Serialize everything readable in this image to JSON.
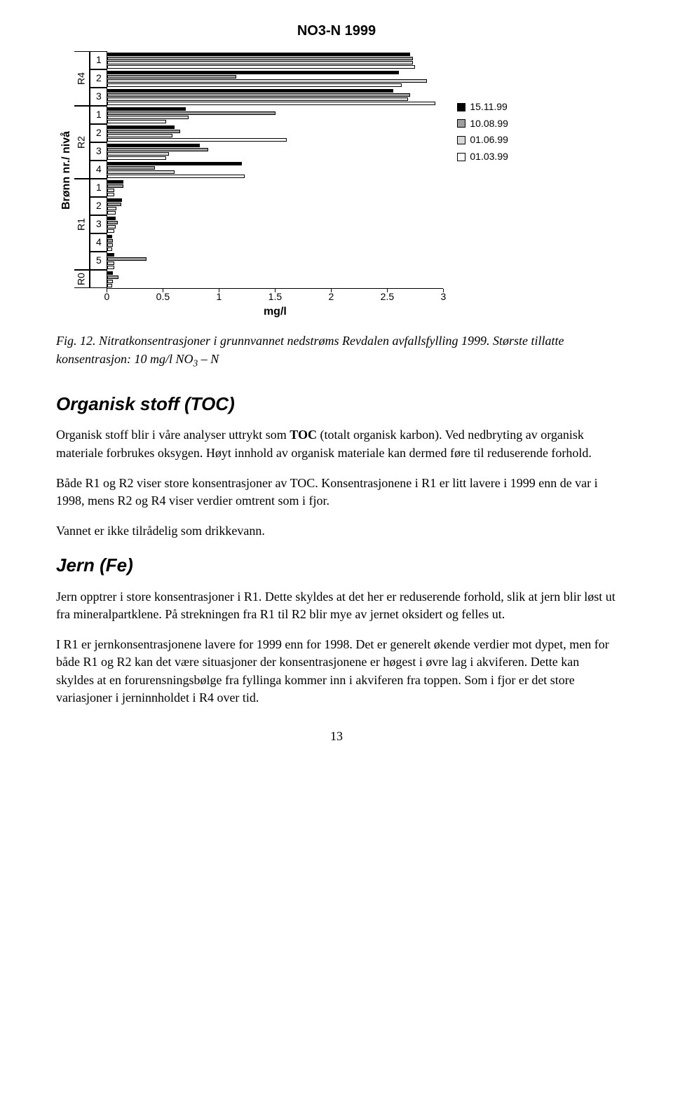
{
  "chart": {
    "title": "NO3-N 1999",
    "y_axis_title": "Brønn nr./ nivå",
    "x_axis_title": "mg/l",
    "x_ticks": [
      "0",
      "0.5",
      "1",
      "1.5",
      "2",
      "2.5",
      "3"
    ],
    "x_max": 3,
    "legend": [
      {
        "label": "15.11.99",
        "color": "#000000"
      },
      {
        "label": "10.08.99",
        "color": "#9e9e9e"
      },
      {
        "label": "01.06.99",
        "color": "#d8d8d8"
      },
      {
        "label": "01.03.99",
        "color": "#ffffff"
      }
    ],
    "groups": [
      {
        "name": "R4",
        "cats": [
          {
            "label": "1",
            "bars": [
              {
                "c": "#000000",
                "v": 2.7
              },
              {
                "c": "#9e9e9e",
                "v": 2.72
              },
              {
                "c": "#d8d8d8",
                "v": 2.72
              },
              {
                "c": "#ffffff",
                "v": 2.74
              }
            ]
          },
          {
            "label": "2",
            "bars": [
              {
                "c": "#000000",
                "v": 2.6
              },
              {
                "c": "#9e9e9e",
                "v": 1.15
              },
              {
                "c": "#d8d8d8",
                "v": 2.85
              },
              {
                "c": "#ffffff",
                "v": 2.62
              }
            ]
          },
          {
            "label": "3",
            "bars": [
              {
                "c": "#000000",
                "v": 2.55
              },
              {
                "c": "#9e9e9e",
                "v": 2.7
              },
              {
                "c": "#d8d8d8",
                "v": 2.68
              },
              {
                "c": "#ffffff",
                "v": 2.92
              }
            ]
          }
        ]
      },
      {
        "name": "R2",
        "cats": [
          {
            "label": "1",
            "bars": [
              {
                "c": "#000000",
                "v": 0.7
              },
              {
                "c": "#9e9e9e",
                "v": 1.5
              },
              {
                "c": "#d8d8d8",
                "v": 0.72
              },
              {
                "c": "#ffffff",
                "v": 0.52
              }
            ]
          },
          {
            "label": "2",
            "bars": [
              {
                "c": "#000000",
                "v": 0.6
              },
              {
                "c": "#9e9e9e",
                "v": 0.65
              },
              {
                "c": "#d8d8d8",
                "v": 0.58
              },
              {
                "c": "#ffffff",
                "v": 1.6
              }
            ]
          },
          {
            "label": "3",
            "bars": [
              {
                "c": "#000000",
                "v": 0.82
              },
              {
                "c": "#9e9e9e",
                "v": 0.9
              },
              {
                "c": "#d8d8d8",
                "v": 0.55
              },
              {
                "c": "#ffffff",
                "v": 0.52
              }
            ]
          },
          {
            "label": "4",
            "bars": [
              {
                "c": "#000000",
                "v": 1.2
              },
              {
                "c": "#9e9e9e",
                "v": 0.42
              },
              {
                "c": "#d8d8d8",
                "v": 0.6
              },
              {
                "c": "#ffffff",
                "v": 1.22
              }
            ]
          }
        ]
      },
      {
        "name": "R1",
        "cats": [
          {
            "label": "1",
            "bars": [
              {
                "c": "#000000",
                "v": 0.14
              },
              {
                "c": "#9e9e9e",
                "v": 0.14
              },
              {
                "c": "#d8d8d8",
                "v": 0.06
              },
              {
                "c": "#ffffff",
                "v": 0.06
              }
            ]
          },
          {
            "label": "2",
            "bars": [
              {
                "c": "#000000",
                "v": 0.13
              },
              {
                "c": "#9e9e9e",
                "v": 0.12
              },
              {
                "c": "#d8d8d8",
                "v": 0.08
              },
              {
                "c": "#ffffff",
                "v": 0.07
              }
            ]
          },
          {
            "label": "3",
            "bars": [
              {
                "c": "#000000",
                "v": 0.07
              },
              {
                "c": "#9e9e9e",
                "v": 0.09
              },
              {
                "c": "#d8d8d8",
                "v": 0.07
              },
              {
                "c": "#ffffff",
                "v": 0.06
              }
            ]
          },
          {
            "label": "4",
            "bars": [
              {
                "c": "#000000",
                "v": 0.04
              },
              {
                "c": "#9e9e9e",
                "v": 0.05
              },
              {
                "c": "#d8d8d8",
                "v": 0.05
              },
              {
                "c": "#ffffff",
                "v": 0.04
              }
            ]
          },
          {
            "label": "5",
            "bars": [
              {
                "c": "#000000",
                "v": 0.06
              },
              {
                "c": "#9e9e9e",
                "v": 0.35
              },
              {
                "c": "#d8d8d8",
                "v": 0.06
              },
              {
                "c": "#ffffff",
                "v": 0.06
              }
            ]
          }
        ]
      },
      {
        "name": "R0",
        "cats": [
          {
            "label": "",
            "bars": [
              {
                "c": "#000000",
                "v": 0.05
              },
              {
                "c": "#9e9e9e",
                "v": 0.1
              },
              {
                "c": "#d8d8d8",
                "v": 0.05
              },
              {
                "c": "#ffffff",
                "v": 0.04
              }
            ]
          }
        ]
      }
    ]
  },
  "caption_prefix": "Fig. 12. Nitratkonsentrasjoner i grunnvannet nedstrøms Revdalen avfallsfylling 1999. Største tillatte konsentrasjon: 10 mg/l NO",
  "caption_sub": "3",
  "caption_suffix": " – N",
  "sections": {
    "toc": {
      "title": "Organisk stoff (TOC)",
      "p1_a": "Organisk stoff  blir i våre analyser uttrykt som ",
      "p1_b": "TOC",
      "p1_c": " (totalt organisk karbon). Ved nedbryting av organisk materiale forbrukes oksygen. Høyt innhold av organisk materiale kan dermed føre til reduserende forhold.",
      "p2": "Både R1 og R2 viser store konsentrasjoner av TOC. Konsentrasjonene i R1 er litt lavere i 1999 enn de var i 1998, mens R2 og R4 viser verdier omtrent som i fjor.",
      "p3": "Vannet er ikke tilrådelig som drikkevann."
    },
    "jern": {
      "title": "Jern (Fe)",
      "p1": "Jern opptrer i store konsentrasjoner i R1. Dette skyldes at det her er reduserende forhold, slik at jern blir løst ut fra mineralpartklene. På strekningen fra R1 til R2 blir mye av jernet oksidert og felles ut.",
      "p2": "I R1 er jernkonsentrasjonene lavere for 1999 enn for 1998. Det er generelt økende verdier mot dypet, men for både R1 og R2 kan det være situasjoner der konsentrasjonene er høgest i øvre lag i akviferen. Dette kan skyldes at en forurensningsbølge fra fyllinga kommer inn i akviferen fra toppen. Som i fjor er det store variasjoner i jerninnholdet i R4 over tid."
    }
  },
  "page_number": "13"
}
